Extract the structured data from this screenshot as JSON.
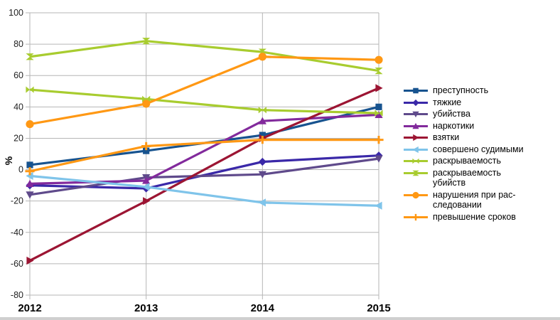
{
  "chart_data": {
    "type": "line",
    "x": [
      2012,
      2013,
      2014,
      2015
    ],
    "xlabel": "",
    "ylabel": "%",
    "ylim": [
      -80,
      100
    ],
    "yticks": [
      100,
      80,
      60,
      40,
      20,
      0,
      -20,
      -40,
      -60,
      -80
    ],
    "grid": true,
    "legend_position": "right",
    "series": [
      {
        "name": "преступность",
        "color": "#17538F",
        "marker": "square",
        "values": [
          3,
          12,
          22,
          40
        ]
      },
      {
        "name": "тяжкие",
        "color": "#3A28A8",
        "marker": "diamond",
        "values": [
          -10,
          -12,
          5,
          9
        ]
      },
      {
        "name": "убийства",
        "color": "#5F4A8B",
        "marker": "arrow-down",
        "values": [
          -16,
          -5,
          -3,
          7
        ]
      },
      {
        "name": "наркотики",
        "color": "#822A9C",
        "marker": "arrow-up",
        "values": [
          -9,
          -7,
          31,
          35
        ]
      },
      {
        "name": "взятки",
        "color": "#9C1533",
        "marker": "arrow-right",
        "values": [
          -58,
          -20,
          20,
          52
        ]
      },
      {
        "name": "совершено судимыми",
        "color": "#7FC4EA",
        "marker": "arrow-left",
        "values": [
          -4,
          -11,
          -21,
          -23
        ]
      },
      {
        "name": "раскрываемость",
        "color": "#A8CC2F",
        "marker": "bowtie",
        "values": [
          51,
          45,
          38,
          36
        ]
      },
      {
        "name": "раскрываемость убийств",
        "legend_label": "раскрываемость\nубийств",
        "color": "#A8CC2F",
        "marker": "sandglass",
        "values": [
          72,
          82,
          75,
          63
        ]
      },
      {
        "name": "нарушения при расследовании",
        "legend_label": "нарушения при рас-\nследовании",
        "color": "#FF9814",
        "marker": "circle",
        "values": [
          29,
          42,
          72,
          70
        ]
      },
      {
        "name": "превышение сроков",
        "color": "#FF9814",
        "marker": "plus",
        "values": [
          -1,
          15,
          19,
          19
        ]
      }
    ]
  },
  "colors": {
    "background": "#ffffff",
    "grid": "#b6b6b6",
    "y_tick_text": "#222222",
    "x_tick_text": "#000000",
    "window_edge": "#cfcfcf"
  }
}
